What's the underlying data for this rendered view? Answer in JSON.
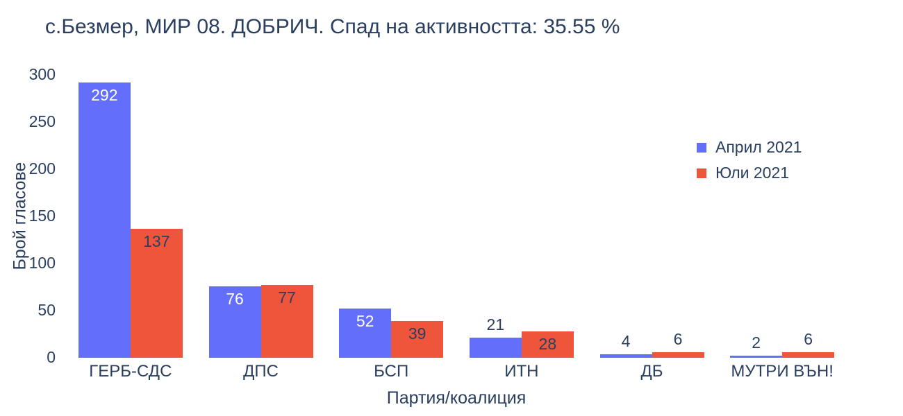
{
  "text_color": "#2a3f5f",
  "chart_data": {
    "type": "bar",
    "title": "с.Безмер, МИР 08. ДОБРИЧ. Спад на активността: 35.55 %",
    "xlabel": "Партия/коалиция",
    "ylabel": "Брой гласове",
    "categories": [
      "ГЕРБ-СДС",
      "ДПС",
      "БСП",
      "ИТН",
      "ДБ",
      "МУТРИ ВЪН!"
    ],
    "series": [
      {
        "name": "Април 2021",
        "color": "#636EFA",
        "inside_label_color": "#ffffff",
        "values": [
          292,
          76,
          52,
          21,
          4,
          2
        ]
      },
      {
        "name": "Юли 2021",
        "color": "#EF553B",
        "inside_label_color": "#2a3f5f",
        "values": [
          137,
          77,
          39,
          28,
          6,
          6
        ]
      }
    ],
    "ylim": [
      0,
      300
    ],
    "yticks": [
      0,
      50,
      100,
      150,
      200,
      250,
      300
    ],
    "grid": false,
    "legend_position": "right",
    "bar_labels_shown": true,
    "outside_label_color": "#2a3f5f"
  }
}
